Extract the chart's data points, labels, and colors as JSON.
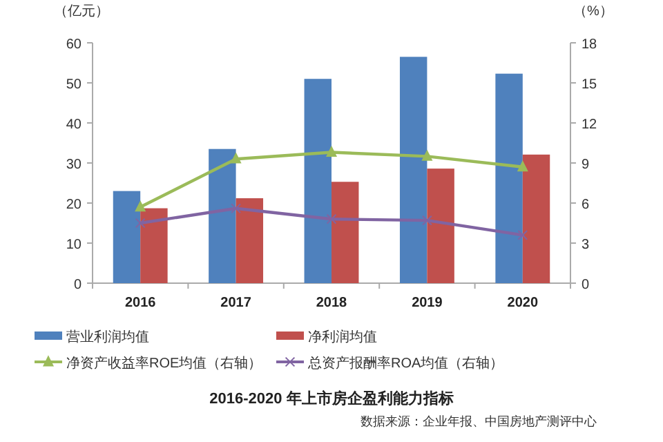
{
  "chart_data": {
    "type": "bar",
    "title": "2016-2020 年上市房企盈利能力指标",
    "annotations": [
      "数据来源：企业年报、中国房地产测评中心"
    ],
    "ylabel": "（亿元）",
    "y2label": "（%）",
    "categories": [
      "2016",
      "2017",
      "2018",
      "2019",
      "2020"
    ],
    "series": [
      {
        "name": "营业利润均值",
        "color": "#4f81bd",
        "values": [
          23,
          33.5,
          51,
          56.5,
          52.3
        ]
      },
      {
        "name": "净利润均值",
        "color": "#c0504d",
        "values": [
          18.7,
          21.2,
          25.3,
          28.6,
          32.1
        ]
      },
      {
        "name": "净资产收益率ROE均值（右轴）",
        "type": "line",
        "axis": "y2",
        "marker": "triangle",
        "color": "#9bbb59",
        "values": [
          5.7,
          9.3,
          9.8,
          9.5,
          8.7
        ]
      },
      {
        "name": "总资产报酬率ROA均值（右轴）",
        "type": "line",
        "axis": "y2",
        "marker": "cross",
        "color": "#8064a2",
        "values": [
          4.5,
          5.6,
          4.8,
          4.7,
          3.6
        ]
      }
    ],
    "ylim": [
      0,
      60
    ],
    "yticks": [
      0,
      10,
      20,
      30,
      40,
      50,
      60
    ],
    "y2lim": [
      0,
      18
    ],
    "y2ticks": [
      0,
      3,
      6,
      9,
      12,
      15,
      18
    ],
    "grid": false,
    "legend": "bottom"
  }
}
